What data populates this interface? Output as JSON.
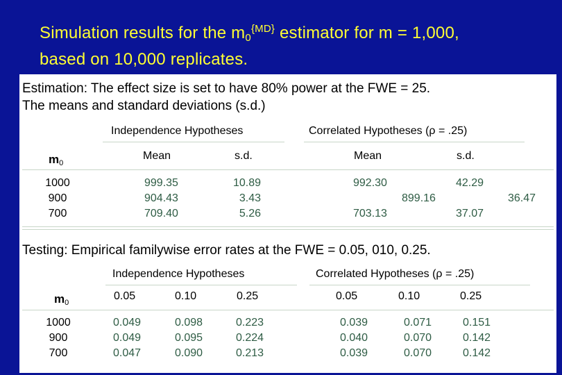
{
  "title": {
    "line1_pre": "Simulation results for the m",
    "sub": "0",
    "sup": "{MD}",
    "line1_post": " estimator for m = 1,000,",
    "line2": "based on 10,000 replicates."
  },
  "estimation": {
    "caption_line1": "Estimation: The effect size is set  to have 80% power at the FWE = 25.",
    "caption_line2": "The means and standard deviations (s.d.)",
    "group_independence": "Independence Hypotheses",
    "group_correlated": "Correlated Hypotheses (ρ = .25)",
    "row_header_base": "m",
    "row_header_sub": "0",
    "col_mean": "Mean",
    "col_sd": "s.d.",
    "m0_values": [
      "1000",
      "900",
      "700"
    ],
    "ind_mean": [
      "999.35",
      "904.43",
      "709.40"
    ],
    "ind_sd": [
      "10.89",
      "3.43",
      "5.26"
    ],
    "cor_mean": [
      "992.30",
      "899.16",
      "703.13"
    ],
    "cor_sd": [
      "42.29",
      "36.47",
      "37.07"
    ]
  },
  "testing": {
    "caption": "Testing: Empirical familywise error rates at the FWE = 0.05, 010, 0.25.",
    "group_independence": "Independence Hypotheses",
    "group_correlated": "Correlated  Hypotheses (ρ = .25)",
    "row_header_base": "m",
    "row_header_sub": "0",
    "levels": [
      "0.05",
      "0.10",
      "0.25"
    ],
    "m0_values": [
      "1000",
      "900",
      "700"
    ],
    "ind": {
      "a05": [
        "0.049",
        "0.049",
        "0.047"
      ],
      "a10": [
        "0.098",
        "0.095",
        "0.090"
      ],
      "a25": [
        "0.223",
        "0.224",
        "0.213"
      ]
    },
    "cor": {
      "a05": [
        "0.039",
        "0.040",
        "0.039"
      ],
      "a10": [
        "0.071",
        "0.070",
        "0.070"
      ],
      "a25": [
        "0.151",
        "0.142",
        "0.142"
      ]
    }
  }
}
